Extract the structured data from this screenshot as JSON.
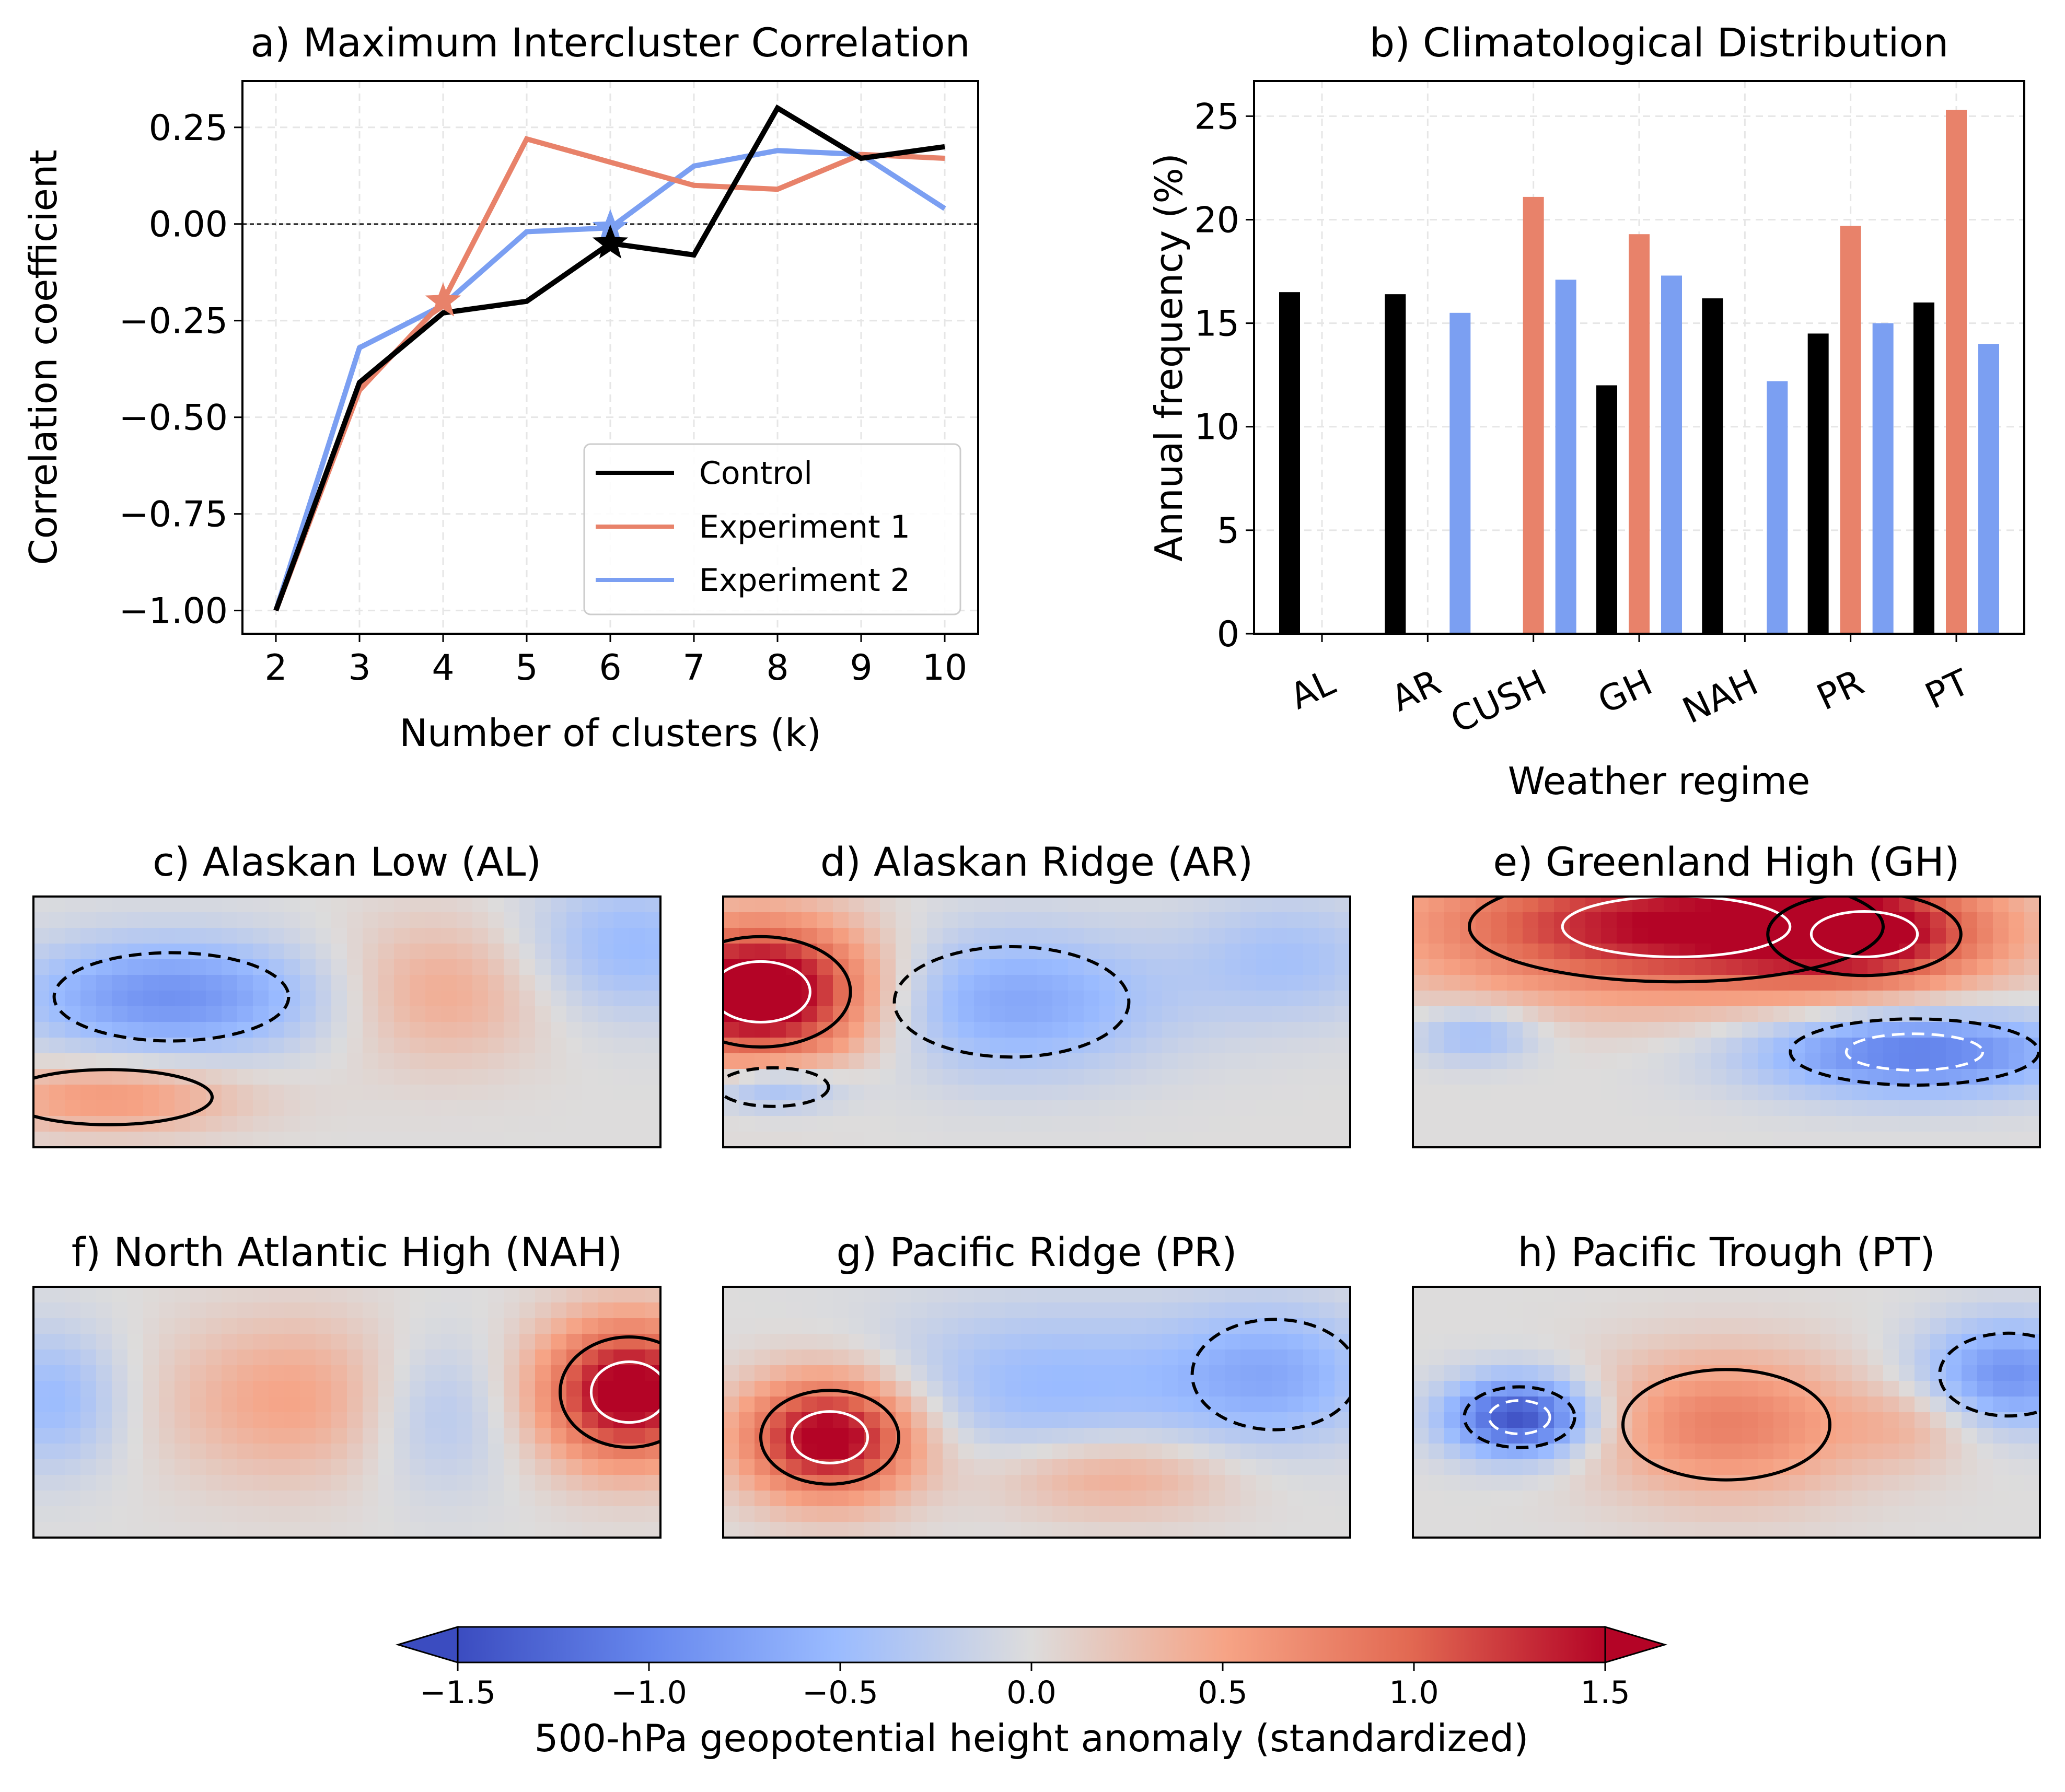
{
  "chart_data": [
    {
      "type": "line",
      "title": "a) Maximum Intercluster Correlation",
      "xlabel": "Number of clusters (k)",
      "ylabel": "Correlation coefficient",
      "x": [
        2,
        3,
        4,
        5,
        6,
        7,
        8,
        9,
        10
      ],
      "xticks": [
        "2",
        "3",
        "4",
        "5",
        "6",
        "7",
        "8",
        "9",
        "10"
      ],
      "xlim": [
        1.6,
        10.4
      ],
      "ylim": [
        -1.06,
        0.37
      ],
      "yticks": [
        "0.25",
        "0.00",
        "−0.25",
        "−0.50",
        "−0.75",
        "−1.00"
      ],
      "ytick_values": [
        0.25,
        0.0,
        -0.25,
        -0.5,
        -0.75,
        -1.0
      ],
      "grid": true,
      "reference_line": 0.0,
      "legend_position": "lower-right",
      "series": [
        {
          "name": "Control",
          "color": "#000000",
          "values": [
            -1.0,
            -0.41,
            -0.23,
            -0.2,
            -0.05,
            -0.08,
            0.3,
            0.17,
            0.2
          ],
          "selected_k": 6,
          "selected_value": -0.05,
          "marker": "star"
        },
        {
          "name": "Experiment 1",
          "color": "#e8826a",
          "values": [
            -1.0,
            -0.43,
            -0.2,
            0.22,
            0.16,
            0.1,
            0.09,
            0.18,
            0.17
          ],
          "selected_k": 4,
          "selected_value": -0.2,
          "marker": "star"
        },
        {
          "name": "Experiment 2",
          "color": "#7b9ff2",
          "values": [
            -1.0,
            -0.32,
            -0.21,
            -0.02,
            -0.01,
            0.15,
            0.19,
            0.18,
            0.04
          ],
          "selected_k": 6,
          "selected_value": -0.01,
          "marker": "star"
        }
      ]
    },
    {
      "type": "bar",
      "title": "b) Climatological Distribution",
      "xlabel": "Weather regime",
      "ylabel": "Annual frequency (%)",
      "categories": [
        "AL",
        "AR",
        "CUSH",
        "GH",
        "NAH",
        "PR",
        "PT"
      ],
      "ylim": [
        0,
        26.7
      ],
      "yticks": [
        "0",
        "5",
        "10",
        "15",
        "20",
        "25"
      ],
      "ytick_values": [
        0,
        5,
        10,
        15,
        20,
        25
      ],
      "grid": true,
      "series": [
        {
          "name": "Control",
          "color": "#000000",
          "values": [
            16.5,
            16.4,
            null,
            12.0,
            16.2,
            14.5,
            16.0
          ]
        },
        {
          "name": "Experiment 1",
          "color": "#e8826a",
          "values": [
            null,
            null,
            21.1,
            19.3,
            null,
            19.7,
            25.3
          ]
        },
        {
          "name": "Experiment 2",
          "color": "#7b9ff2",
          "values": [
            null,
            15.5,
            17.1,
            17.3,
            12.2,
            15.0,
            14.0
          ]
        }
      ]
    },
    {
      "type": "heatmap",
      "maps": [
        {
          "title": "c) Alaskan Low (AL)",
          "anomalies": [
            {
              "lon": 0.22,
              "lat": 0.4,
              "sx": 0.17,
              "sy": 0.16,
              "a": -0.9
            },
            {
              "lon": 0.12,
              "lat": 0.8,
              "sx": 0.15,
              "sy": 0.1,
              "a": 0.6
            },
            {
              "lon": 0.65,
              "lat": 0.38,
              "sx": 0.12,
              "sy": 0.2,
              "a": 0.45
            },
            {
              "lon": 0.95,
              "lat": 0.2,
              "sx": 0.12,
              "sy": 0.2,
              "a": -0.5
            }
          ]
        },
        {
          "title": "d) Alaskan Ridge (AR)",
          "anomalies": [
            {
              "lon": 0.06,
              "lat": 0.38,
              "sx": 0.13,
              "sy": 0.2,
              "a": 1.9
            },
            {
              "lon": 0.46,
              "lat": 0.42,
              "sx": 0.17,
              "sy": 0.2,
              "a": -0.7
            },
            {
              "lon": 0.08,
              "lat": 0.76,
              "sx": 0.08,
              "sy": 0.07,
              "a": -0.6
            },
            {
              "lon": 0.9,
              "lat": 0.25,
              "sx": 0.12,
              "sy": 0.18,
              "a": -0.4
            }
          ]
        },
        {
          "title": "e) Greenland High (GH)",
          "anomalies": [
            {
              "lon": 0.42,
              "lat": 0.12,
              "sx": 0.3,
              "sy": 0.2,
              "a": 1.5
            },
            {
              "lon": 0.72,
              "lat": 0.15,
              "sx": 0.14,
              "sy": 0.15,
              "a": 1.0
            },
            {
              "lon": 0.8,
              "lat": 0.62,
              "sx": 0.18,
              "sy": 0.12,
              "a": -1.1
            },
            {
              "lon": 0.1,
              "lat": 0.55,
              "sx": 0.07,
              "sy": 0.08,
              "a": -0.5
            }
          ]
        },
        {
          "title": "f) North Atlantic High (NAH)",
          "anomalies": [
            {
              "lon": 0.95,
              "lat": 0.42,
              "sx": 0.1,
              "sy": 0.2,
              "a": 1.7
            },
            {
              "lon": 0.42,
              "lat": 0.45,
              "sx": 0.15,
              "sy": 0.23,
              "a": 0.5
            },
            {
              "lon": 0.64,
              "lat": 0.5,
              "sx": 0.09,
              "sy": 0.22,
              "a": -0.4
            },
            {
              "lon": 0.03,
              "lat": 0.45,
              "sx": 0.08,
              "sy": 0.2,
              "a": -0.5
            }
          ]
        },
        {
          "title": "g) Pacific Ridge (PR)",
          "anomalies": [
            {
              "lon": 0.17,
              "lat": 0.6,
              "sx": 0.1,
              "sy": 0.17,
              "a": 1.7
            },
            {
              "lon": 0.52,
              "lat": 0.4,
              "sx": 0.2,
              "sy": 0.23,
              "a": -0.5
            },
            {
              "lon": 0.62,
              "lat": 0.75,
              "sx": 0.14,
              "sy": 0.12,
              "a": 0.5
            },
            {
              "lon": 0.88,
              "lat": 0.35,
              "sx": 0.12,
              "sy": 0.2,
              "a": -0.6
            }
          ]
        },
        {
          "title": "h) Pacific Trough (PT)",
          "anomalies": [
            {
              "lon": 0.17,
              "lat": 0.52,
              "sx": 0.08,
              "sy": 0.11,
              "a": -1.5
            },
            {
              "lon": 0.5,
              "lat": 0.55,
              "sx": 0.15,
              "sy": 0.2,
              "a": 0.8
            },
            {
              "lon": 0.95,
              "lat": 0.35,
              "sx": 0.1,
              "sy": 0.15,
              "a": -0.9
            },
            {
              "lon": 0.8,
              "lat": 0.55,
              "sx": 0.08,
              "sy": 0.12,
              "a": 0.3
            }
          ]
        }
      ],
      "colorbar": {
        "label": "500-hPa geopotential height anomaly (standardized)",
        "range": [
          -1.5,
          1.5
        ],
        "ticks": [
          "−1.5",
          "−1.0",
          "−0.5",
          "0.0",
          "0.5",
          "1.0",
          "1.5"
        ],
        "tick_values": [
          -1.5,
          -1.0,
          -0.5,
          0.0,
          0.5,
          1.0,
          1.5
        ],
        "colormap": "coolwarm",
        "extend": "both"
      }
    }
  ]
}
